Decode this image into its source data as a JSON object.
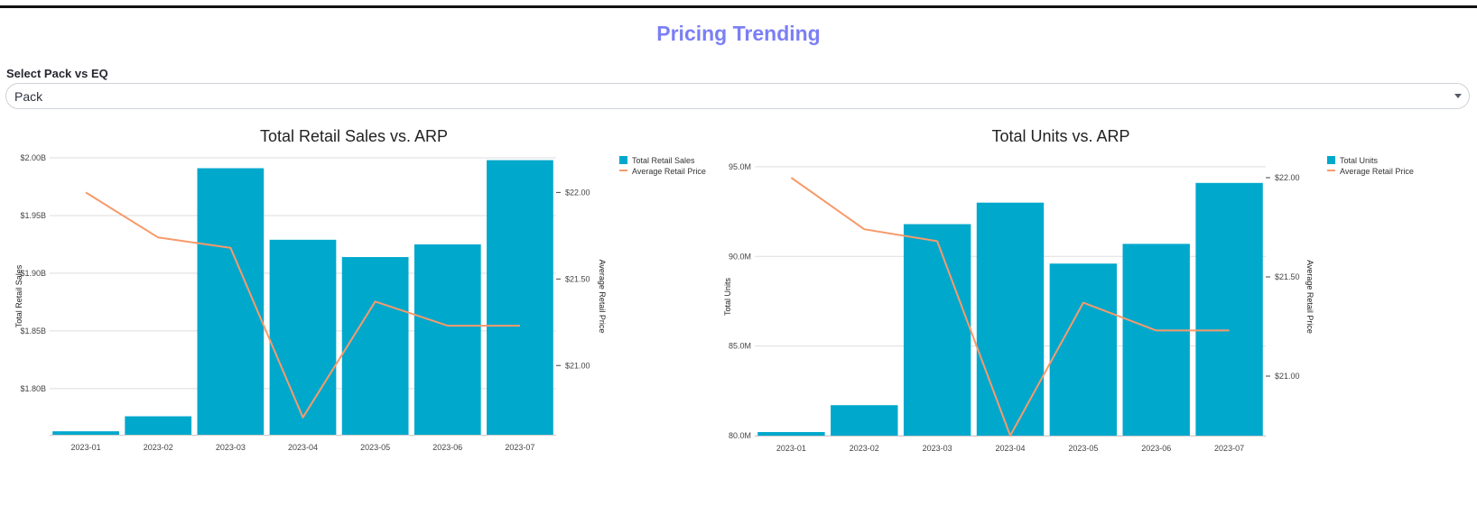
{
  "page": {
    "title": "Pricing Trending",
    "select_label": "Select Pack vs EQ",
    "select_value": "Pack"
  },
  "colors": {
    "title": "#7b7ff5",
    "bar": "#00a8cc",
    "line": "#f79a6b",
    "grid": "#dddddd"
  },
  "chart_data": [
    {
      "type": "bar",
      "title": "Total Retail Sales vs. ARP",
      "categories": [
        "2023-01",
        "2023-02",
        "2023-03",
        "2023-04",
        "2023-05",
        "2023-06",
        "2023-07"
      ],
      "series": [
        {
          "name": "Total Retail Sales",
          "type": "bar",
          "axis": "left",
          "values": [
            1.763,
            1.776,
            1.991,
            1.929,
            1.914,
            1.925,
            1.998
          ]
        },
        {
          "name": "Average Retail Price",
          "type": "line",
          "axis": "right",
          "values": [
            22.0,
            21.74,
            21.68,
            20.7,
            21.37,
            21.23,
            21.23
          ]
        }
      ],
      "ylabel": "Total Retail Sales",
      "ylabel_right": "Average Retail Price",
      "ylim": [
        1.76,
        2.0
      ],
      "yticks": [
        1.8,
        1.85,
        1.9,
        1.95,
        2.0
      ],
      "ytick_labels": [
        "$1.80B",
        "$1.85B",
        "$1.90B",
        "$1.95B",
        "$2.00B"
      ],
      "ylim_right": [
        20.6,
        22.2
      ],
      "yticks_right": [
        21.0,
        21.5,
        22.0
      ],
      "ytick_labels_right": [
        "$21.00",
        "$21.50",
        "$22.00"
      ],
      "grid": true,
      "legend": "top-right"
    },
    {
      "type": "bar",
      "title": "Total Units vs. ARP",
      "categories": [
        "2023-01",
        "2023-02",
        "2023-03",
        "2023-04",
        "2023-05",
        "2023-06",
        "2023-07"
      ],
      "series": [
        {
          "name": "Total Units",
          "type": "bar",
          "axis": "left",
          "values": [
            80.2,
            81.7,
            91.8,
            93.0,
            89.6,
            90.7,
            94.1
          ]
        },
        {
          "name": "Average Retail Price",
          "type": "line",
          "axis": "right",
          "values": [
            22.0,
            21.74,
            21.68,
            20.7,
            21.37,
            21.23,
            21.23
          ]
        }
      ],
      "ylabel": "Total Units",
      "ylabel_right": "Average Retail Price",
      "ylim": [
        80.0,
        95.5
      ],
      "yticks": [
        80.0,
        85.0,
        90.0,
        95.0
      ],
      "ytick_labels": [
        "80.0M",
        "85.0M",
        "90.0M",
        "95.0M"
      ],
      "ylim_right": [
        20.7,
        22.1
      ],
      "yticks_right": [
        21.0,
        21.5,
        22.0
      ],
      "ytick_labels_right": [
        "$21.00",
        "$21.50",
        "$22.00"
      ],
      "grid": true,
      "legend": "top-right"
    }
  ]
}
